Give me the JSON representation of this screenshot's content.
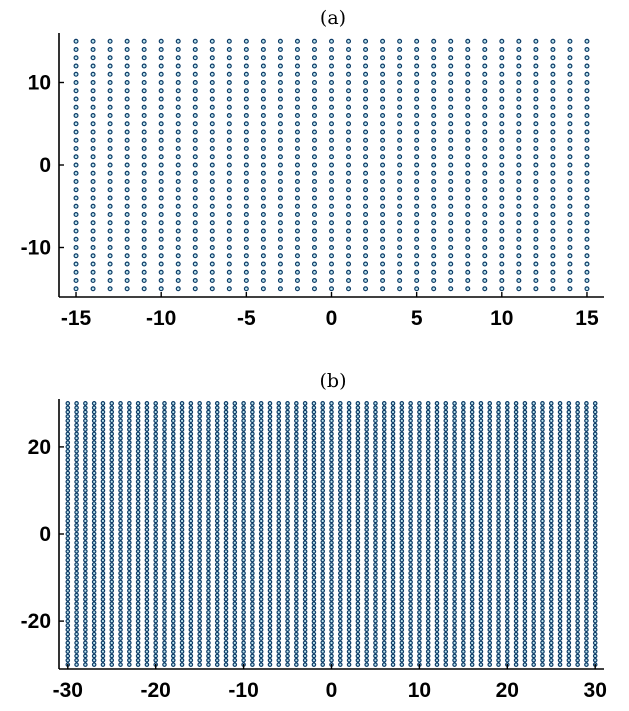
{
  "colors": {
    "marker_edge": "#0d3b66",
    "marker_face": "#bfe8f2",
    "axis": "#000000"
  },
  "chart_data": [
    {
      "type": "scatter",
      "title": "(a)",
      "xlabel": "",
      "ylabel": "",
      "xlim": [
        -16,
        16
      ],
      "ylim": [
        -16,
        16
      ],
      "grid": false,
      "legend": "none",
      "marker": "circle",
      "lattice": {
        "x_from": -15,
        "x_to": 15,
        "y_from": -15,
        "y_to": 15,
        "step": 1
      },
      "xticks": [
        -15,
        -10,
        -5,
        0,
        5,
        10,
        15
      ],
      "yticks": [
        -10,
        0,
        10
      ],
      "xtick_labels": [
        "-15",
        "-10",
        "-5",
        "0",
        "5",
        "10",
        "15"
      ],
      "ytick_labels": [
        "-10",
        "0",
        "10"
      ]
    },
    {
      "type": "scatter",
      "title": "(b)",
      "xlabel": "",
      "ylabel": "",
      "xlim": [
        -31,
        31
      ],
      "ylim": [
        -31,
        31
      ],
      "grid": false,
      "legend": "none",
      "marker": "circle",
      "lattice": {
        "x_from": -30,
        "x_to": 30,
        "y_from": -30,
        "y_to": 30,
        "step": 1
      },
      "xticks": [
        -30,
        -20,
        -10,
        0,
        10,
        20,
        30
      ],
      "yticks": [
        -20,
        0,
        20
      ],
      "xtick_labels": [
        "-30",
        "-20",
        "-10",
        "0",
        "10",
        "20",
        "30"
      ],
      "ytick_labels": [
        "-20",
        "0",
        "20"
      ]
    }
  ]
}
